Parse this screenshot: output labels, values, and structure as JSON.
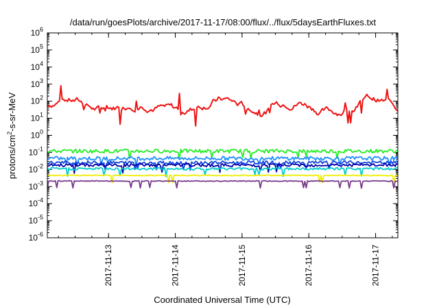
{
  "chart_data": {
    "type": "line",
    "title": "/data/run/goesPlots/archive/2017-11-17/08:00/flux/../flux/5daysEarthFluxes.txt",
    "xlabel": "Coordinated Universal Time (UTC)",
    "ylabel": "protons/cm²-s-sr-MeV",
    "ylabel_parts": {
      "pre": "protons/cm",
      "sup": "2",
      "post": "-s-sr-MeV"
    },
    "yscale": "log",
    "ylim": [
      1e-06,
      1000000.0
    ],
    "yticks": [
      {
        "base": "10",
        "exp": "6"
      },
      {
        "base": "10",
        "exp": "5"
      },
      {
        "base": "10",
        "exp": "4"
      },
      {
        "base": "10",
        "exp": "3"
      },
      {
        "base": "10",
        "exp": "2"
      },
      {
        "base": "10",
        "exp": "1"
      },
      {
        "base": "10",
        "exp": "0"
      },
      {
        "base": "10",
        "exp": "-1"
      },
      {
        "base": "10",
        "exp": "-2"
      },
      {
        "base": "10",
        "exp": "-3"
      },
      {
        "base": "10",
        "exp": "-4"
      },
      {
        "base": "10",
        "exp": "-5"
      },
      {
        "base": "10",
        "exp": "-6"
      }
    ],
    "xlim": [
      "2017-11-12T02:00",
      "2017-11-17T08:00"
    ],
    "xticks": [
      "2017-11-13",
      "2017-11-14",
      "2017-11-15",
      "2017-11-16",
      "2017-11-17"
    ],
    "grid": false,
    "series": [
      {
        "color": "#ee1111",
        "level": 60,
        "spread": 1.1
      },
      {
        "color": "#22ee22",
        "level": 0.12,
        "spread": 0.22
      },
      {
        "color": "#1a8cff",
        "level": 0.045,
        "spread": 0.22
      },
      {
        "color": "#1144dd",
        "level": 0.025,
        "spread": 0.2
      },
      {
        "color": "#0000aa",
        "level": 0.018,
        "spread": 0.18
      },
      {
        "color": "#00cccc",
        "level": 0.011,
        "spread": 0.15
      },
      {
        "color": "#eeee00",
        "level": 0.0045,
        "spread": 0.05
      },
      {
        "color": "#7a3a8a",
        "level": 0.0021,
        "spread": 0.05
      }
    ]
  }
}
